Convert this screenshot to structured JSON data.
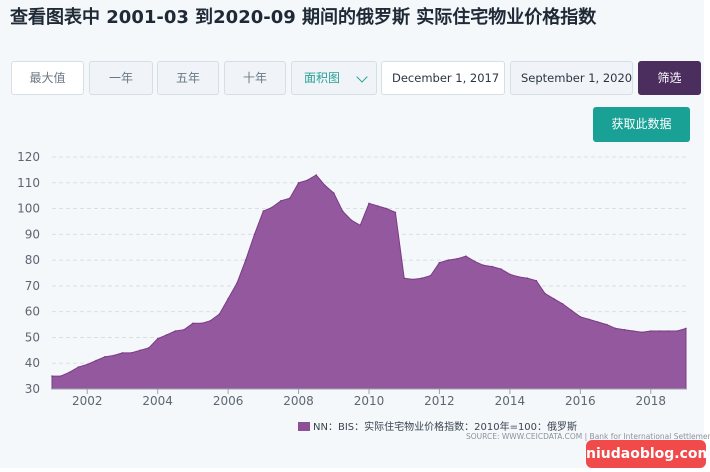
{
  "page": {
    "title": "查看图表中 2001-03 到2020-09 期间的俄罗斯 实际住宅物业价格指数"
  },
  "controls": {
    "max_label": "最大值",
    "one_year_label": "一年",
    "five_year_label": "五年",
    "ten_year_label": "十年",
    "chart_type_value": "面积图",
    "start_date": "December 1, 2017",
    "end_date": "September 1, 2020",
    "filter_label": "筛选",
    "get_data_label": "获取此数据"
  },
  "colors": {
    "area_fill": "#8d4f98",
    "accent_teal": "#1aa195",
    "filter_purple": "#4b2d5e"
  },
  "legend": {
    "text": "NN：BIS：实际住宅物业价格指数：2010年=100：俄罗斯"
  },
  "source": {
    "text": "SOURCE: WWW.CEICDATA.COM | Bank for International Settlements"
  },
  "watermark": {
    "text": "niudaoblog.com"
  },
  "chart_data": {
    "type": "area",
    "title": "",
    "xlabel": "",
    "ylabel": "",
    "xlim": [
      2001.0,
      2019.0
    ],
    "ylim": [
      30,
      120
    ],
    "grid": true,
    "legend_position": "bottom-center",
    "y_ticks": [
      30,
      40,
      50,
      60,
      70,
      80,
      90,
      100,
      110,
      120
    ],
    "x_ticks": [
      2002,
      2004,
      2006,
      2008,
      2010,
      2012,
      2014,
      2016,
      2018
    ],
    "series": [
      {
        "name": "NN：BIS：实际住宅物业价格指数：2010年=100：俄罗斯",
        "x": [
          2001.0,
          2001.25,
          2001.5,
          2001.75,
          2002.0,
          2002.25,
          2002.5,
          2002.75,
          2003.0,
          2003.25,
          2003.5,
          2003.75,
          2004.0,
          2004.25,
          2004.5,
          2004.75,
          2005.0,
          2005.25,
          2005.5,
          2005.75,
          2006.0,
          2006.25,
          2006.5,
          2006.75,
          2007.0,
          2007.25,
          2007.5,
          2007.75,
          2008.0,
          2008.25,
          2008.5,
          2008.75,
          2009.0,
          2009.25,
          2009.5,
          2009.75,
          2010.0,
          2010.25,
          2010.5,
          2010.75,
          2011.0,
          2011.25,
          2011.5,
          2011.75,
          2012.0,
          2012.25,
          2012.5,
          2012.75,
          2013.0,
          2013.25,
          2013.5,
          2013.75,
          2014.0,
          2014.25,
          2014.5,
          2014.75,
          2015.0,
          2015.25,
          2015.5,
          2015.75,
          2016.0,
          2016.25,
          2016.5,
          2016.75,
          2017.0,
          2017.25,
          2017.5,
          2017.75,
          2018.0,
          2018.25,
          2018.5,
          2018.75,
          2019.0
        ],
        "values": [
          35,
          35,
          36.5,
          38.5,
          39.5,
          41,
          42.5,
          43,
          44,
          44,
          45,
          46,
          49.5,
          51,
          52.5,
          53,
          55.5,
          55.5,
          56.5,
          59,
          65,
          71,
          80,
          90,
          99,
          100.5,
          103,
          104,
          110,
          111,
          113,
          109,
          106,
          99,
          95.5,
          93.5,
          102,
          101,
          100,
          98.5,
          73,
          72.5,
          73,
          74,
          79,
          80,
          80.5,
          81.5,
          79.5,
          78,
          77.5,
          76.5,
          74.5,
          73.5,
          73,
          72,
          67,
          65,
          63,
          60.5,
          58,
          57,
          56,
          55,
          53.5,
          53,
          52.5,
          52,
          52.5,
          52.5,
          52.5,
          52.5,
          53.5
        ]
      }
    ]
  }
}
